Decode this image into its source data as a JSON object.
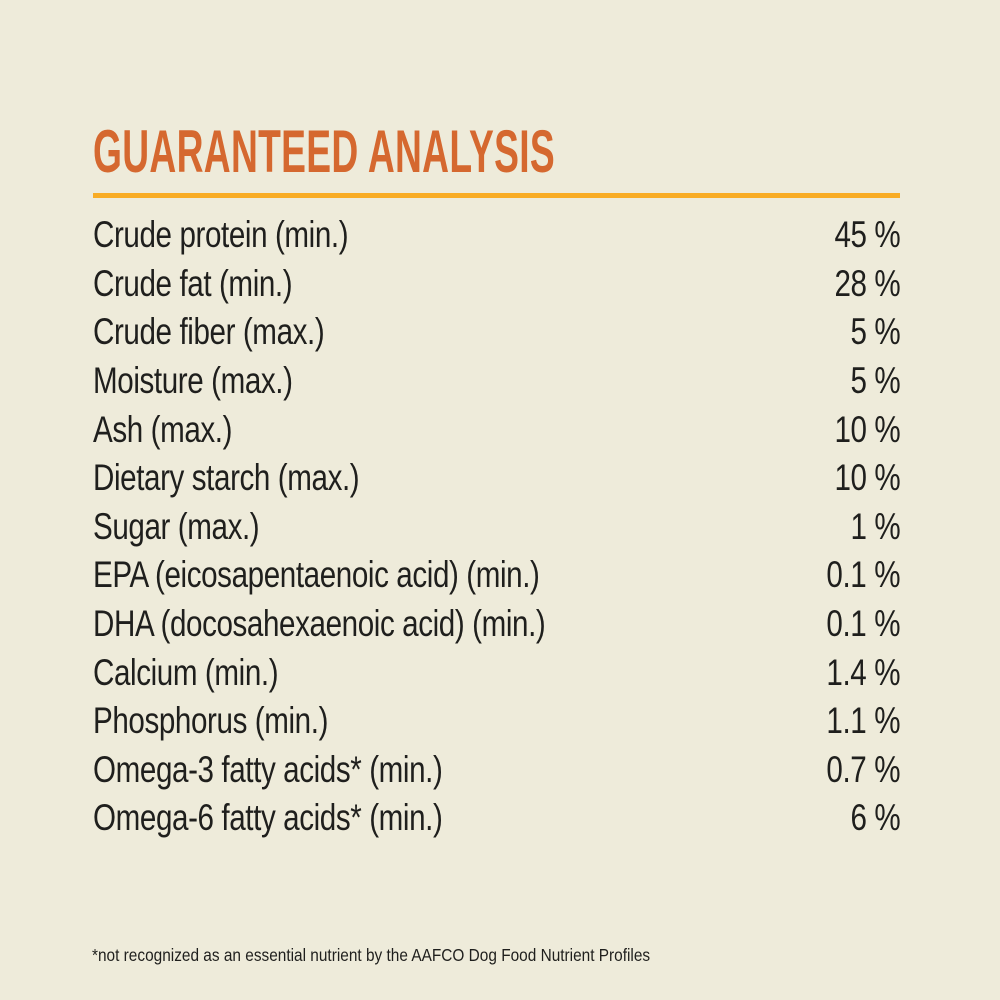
{
  "title": "GUARANTEED ANALYSIS",
  "colors": {
    "bg": "#EEEBDA",
    "accent": "#D5682F",
    "rule": "#F8AC25",
    "ink": "#1F1F1D"
  },
  "table": {
    "rows": [
      {
        "label": "Crude protein (min.)",
        "value": "45 %"
      },
      {
        "label": "Crude fat (min.)",
        "value": "28 %"
      },
      {
        "label": "Crude fiber (max.)",
        "value": "5 %"
      },
      {
        "label": "Moisture (max.)",
        "value": "5 %"
      },
      {
        "label": "Ash (max.)",
        "value": "10 %"
      },
      {
        "label": "Dietary starch (max.)",
        "value": "10 %"
      },
      {
        "label": "Sugar (max.)",
        "value": "1 %"
      },
      {
        "label": "EPA (eicosapentaenoic acid) (min.)",
        "value": "0.1 %"
      },
      {
        "label": "DHA (docosahexaenoic acid) (min.)",
        "value": "0.1 %"
      },
      {
        "label": "Calcium (min.)",
        "value": "1.4 %"
      },
      {
        "label": "Phosphorus (min.)",
        "value": "1.1 %"
      },
      {
        "label": "Omega-3 fatty acids* (min.)",
        "value": "0.7 %"
      },
      {
        "label": "Omega-6 fatty acids* (min.)",
        "value": "6 %"
      }
    ]
  },
  "footnote": "*not recognized as an essential nutrient by the AAFCO Dog Food Nutrient Profiles"
}
